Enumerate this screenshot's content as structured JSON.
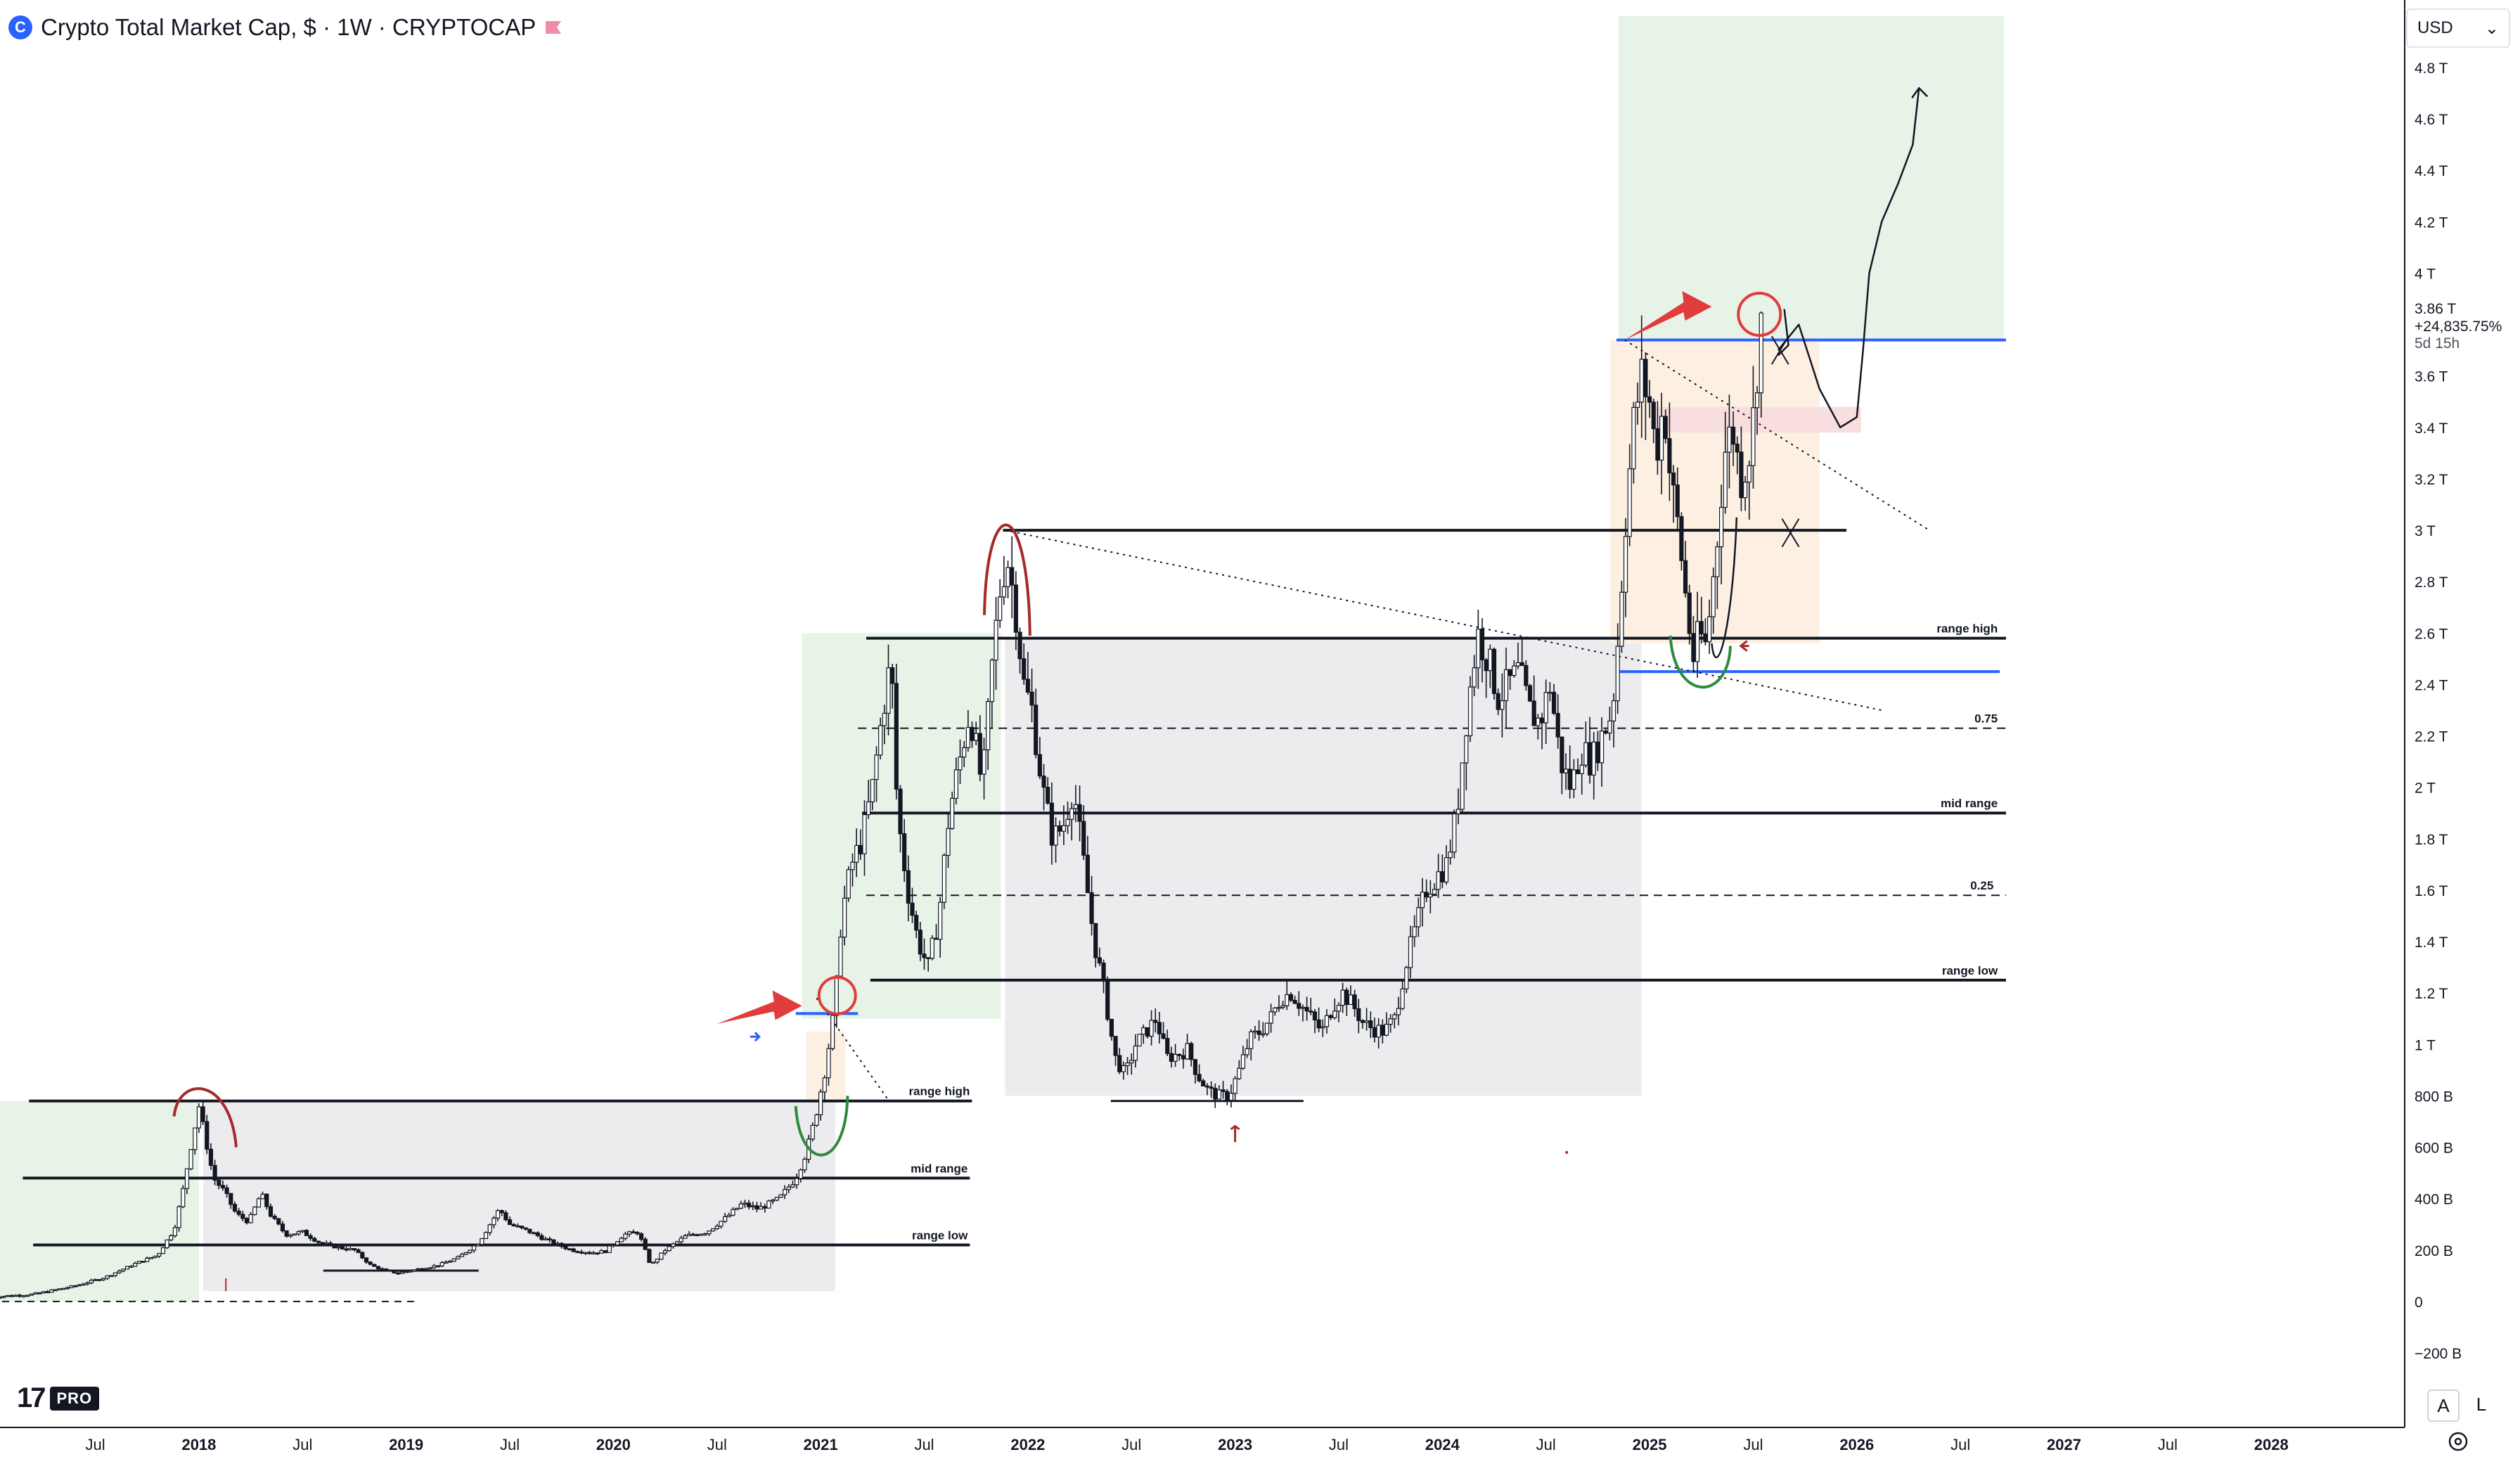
{
  "header": {
    "title": "Crypto Total Market Cap, $ · 1W · CRYPTOCAP",
    "logo_icon": "crypto-market-cap-icon",
    "flag_icon": "flag-icon"
  },
  "currency_selector": {
    "value": "USD"
  },
  "price_scale": {
    "ticks": [
      "4.8 T",
      "4.6 T",
      "4.4 T",
      "4.2 T",
      "4 T",
      "3.6 T",
      "3.4 T",
      "3.2 T",
      "3 T",
      "2.8 T",
      "2.6 T",
      "2.4 T",
      "2.2 T",
      "2 T",
      "1.8 T",
      "1.6 T",
      "1.4 T",
      "1.2 T",
      "1 T",
      "800 B",
      "600 B",
      "400 B",
      "200 B",
      "0",
      "−200 B"
    ],
    "current_price": "3.86 T",
    "change": "+24,835.75%",
    "countdown": "5d 15h"
  },
  "bottom_controls": {
    "auto_label": "A",
    "log_label": "L",
    "settings_icon": "gear-icon"
  },
  "branding": {
    "logo_text": "17",
    "pro_label": "PRO"
  },
  "colors": {
    "accent": "#2962ff",
    "arrow_red": "#e03c3c",
    "arc_red": "#a52a2a",
    "arc_green": "#2e8b3e",
    "zone_green": "#e8f3e8",
    "zone_gray": "#ececef",
    "zone_orange": "#fdf0e3",
    "zone_pink": "#f8dede"
  },
  "chart_data": {
    "type": "candlestick",
    "title": "Crypto Total Market Cap, $ · 1W · CRYPTOCAP",
    "ylabel": "",
    "xlabel": "",
    "y_ticks": [
      "4.8 T",
      "4.6 T",
      "4.4 T",
      "4.2 T",
      "4 T",
      "3.6 T",
      "3.4 T",
      "3.2 T",
      "3 T",
      "2.8 T",
      "2.6 T",
      "2.4 T",
      "2.2 T",
      "2 T",
      "1.8 T",
      "1.6 T",
      "1.4 T",
      "1.2 T",
      "1 T",
      "800 B",
      "600 B",
      "400 B",
      "200 B",
      "0",
      "−200 B"
    ],
    "y_tick_values": [
      4800,
      4600,
      4400,
      4200,
      4000,
      3600,
      3400,
      3200,
      3000,
      2800,
      2600,
      2400,
      2200,
      2000,
      1800,
      1600,
      1400,
      1200,
      1000,
      800,
      600,
      400,
      200,
      0,
      -200
    ],
    "ylim": [
      -300,
      5000
    ],
    "y_unit": "B",
    "x_ticks": [
      "Jul",
      "2018",
      "Jul",
      "2019",
      "Jul",
      "2020",
      "Jul",
      "2021",
      "Jul",
      "2022",
      "Jul",
      "2023",
      "Jul",
      "2024",
      "Jul",
      "2025",
      "Jul",
      "2026",
      "Jul",
      "2027",
      "Jul",
      "2028"
    ],
    "x_tick_values": [
      2017.5,
      2018,
      2018.5,
      2019,
      2019.5,
      2020,
      2020.5,
      2021,
      2021.5,
      2022,
      2022.5,
      2023,
      2023.5,
      2024,
      2024.5,
      2025,
      2025.5,
      2026,
      2026.5,
      2027,
      2027.5,
      2028
    ],
    "xlim": [
      2017.04,
      2028.62
    ],
    "grid": false,
    "price_path": [
      [
        2017.0,
        18
      ],
      [
        2017.2,
        28
      ],
      [
        2017.4,
        60
      ],
      [
        2017.55,
        95
      ],
      [
        2017.7,
        150
      ],
      [
        2017.8,
        180
      ],
      [
        2017.88,
        280
      ],
      [
        2017.92,
        420
      ],
      [
        2017.96,
        600
      ],
      [
        2018.0,
        760
      ],
      [
        2018.03,
        640
      ],
      [
        2018.07,
        480
      ],
      [
        2018.12,
        430
      ],
      [
        2018.18,
        340
      ],
      [
        2018.24,
        310
      ],
      [
        2018.3,
        420
      ],
      [
        2018.35,
        330
      ],
      [
        2018.42,
        260
      ],
      [
        2018.5,
        270
      ],
      [
        2018.58,
        230
      ],
      [
        2018.67,
        210
      ],
      [
        2018.75,
        200
      ],
      [
        2018.83,
        140
      ],
      [
        2018.9,
        120
      ],
      [
        2018.96,
        110
      ],
      [
        2019.05,
        125
      ],
      [
        2019.15,
        140
      ],
      [
        2019.25,
        170
      ],
      [
        2019.35,
        230
      ],
      [
        2019.45,
        360
      ],
      [
        2019.5,
        300
      ],
      [
        2019.6,
        270
      ],
      [
        2019.7,
        230
      ],
      [
        2019.8,
        200
      ],
      [
        2019.9,
        190
      ],
      [
        2019.96,
        195
      ],
      [
        2020.05,
        260
      ],
      [
        2020.12,
        270
      ],
      [
        2020.18,
        140
      ],
      [
        2020.25,
        200
      ],
      [
        2020.35,
        255
      ],
      [
        2020.45,
        270
      ],
      [
        2020.55,
        330
      ],
      [
        2020.62,
        380
      ],
      [
        2020.7,
        360
      ],
      [
        2020.8,
        400
      ],
      [
        2020.88,
        480
      ],
      [
        2020.93,
        580
      ],
      [
        2020.97,
        700
      ],
      [
        2021.02,
        900
      ],
      [
        2021.07,
        1150
      ],
      [
        2021.1,
        1500
      ],
      [
        2021.15,
        1700
      ],
      [
        2021.2,
        1800
      ],
      [
        2021.25,
        2000
      ],
      [
        2021.3,
        2300
      ],
      [
        2021.34,
        2500
      ],
      [
        2021.37,
        1900
      ],
      [
        2021.42,
        1600
      ],
      [
        2021.47,
        1400
      ],
      [
        2021.52,
        1300
      ],
      [
        2021.57,
        1500
      ],
      [
        2021.62,
        1900
      ],
      [
        2021.67,
        2100
      ],
      [
        2021.72,
        2300
      ],
      [
        2021.78,
        2000
      ],
      [
        2021.83,
        2500
      ],
      [
        2021.87,
        2800
      ],
      [
        2021.9,
        2900
      ],
      [
        2021.94,
        2700
      ],
      [
        2021.98,
        2400
      ],
      [
        2022.02,
        2300
      ],
      [
        2022.07,
        2000
      ],
      [
        2022.12,
        1800
      ],
      [
        2022.17,
        1850
      ],
      [
        2022.22,
        2000
      ],
      [
        2022.27,
        1700
      ],
      [
        2022.32,
        1400
      ],
      [
        2022.37,
        1200
      ],
      [
        2022.42,
        950
      ],
      [
        2022.47,
        880
      ],
      [
        2022.52,
        1000
      ],
      [
        2022.57,
        1050
      ],
      [
        2022.62,
        1100
      ],
      [
        2022.67,
        950
      ],
      [
        2022.72,
        960
      ],
      [
        2022.77,
        980
      ],
      [
        2022.82,
        880
      ],
      [
        2022.87,
        820
      ],
      [
        2022.92,
        800
      ],
      [
        2022.97,
        800
      ],
      [
        2023.02,
        900
      ],
      [
        2023.07,
        1020
      ],
      [
        2023.12,
        1050
      ],
      [
        2023.17,
        1100
      ],
      [
        2023.22,
        1180
      ],
      [
        2023.27,
        1200
      ],
      [
        2023.32,
        1150
      ],
      [
        2023.37,
        1100
      ],
      [
        2023.42,
        1050
      ],
      [
        2023.47,
        1150
      ],
      [
        2023.52,
        1200
      ],
      [
        2023.57,
        1150
      ],
      [
        2023.62,
        1080
      ],
      [
        2023.67,
        1060
      ],
      [
        2023.72,
        1050
      ],
      [
        2023.77,
        1100
      ],
      [
        2023.82,
        1300
      ],
      [
        2023.87,
        1450
      ],
      [
        2023.92,
        1600
      ],
      [
        2023.97,
        1650
      ],
      [
        2024.02,
        1700
      ],
      [
        2024.07,
        1900
      ],
      [
        2024.12,
        2300
      ],
      [
        2024.17,
        2600
      ],
      [
        2024.22,
        2500
      ],
      [
        2024.27,
        2350
      ],
      [
        2024.32,
        2400
      ],
      [
        2024.37,
        2450
      ],
      [
        2024.42,
        2300
      ],
      [
        2024.47,
        2250
      ],
      [
        2024.52,
        2400
      ],
      [
        2024.57,
        2100
      ],
      [
        2024.62,
        2000
      ],
      [
        2024.67,
        2150
      ],
      [
        2024.72,
        2100
      ],
      [
        2024.77,
        2200
      ],
      [
        2024.82,
        2300
      ],
      [
        2024.85,
        2600
      ],
      [
        2024.88,
        3000
      ],
      [
        2024.92,
        3400
      ],
      [
        2024.96,
        3600
      ],
      [
        2025.0,
        3500
      ],
      [
        2025.03,
        3300
      ],
      [
        2025.07,
        3500
      ],
      [
        2025.1,
        3200
      ],
      [
        2025.14,
        3000
      ],
      [
        2025.18,
        2700
      ],
      [
        2025.21,
        2500
      ],
      [
        2025.24,
        2600
      ],
      [
        2025.27,
        2550
      ],
      [
        2025.3,
        2750
      ],
      [
        2025.33,
        3000
      ],
      [
        2025.36,
        3300
      ],
      [
        2025.4,
        3400
      ],
      [
        2025.44,
        3200
      ],
      [
        2025.48,
        3300
      ],
      [
        2025.51,
        3500
      ],
      [
        2025.53,
        3800
      ],
      [
        2025.55,
        3860
      ]
    ],
    "ranges": [
      {
        "name": "cycle-2018",
        "high": 780,
        "mid": 480,
        "low": 220,
        "labels": [
          "range high",
          "mid range",
          "range low"
        ]
      },
      {
        "name": "cycle-2022",
        "high": 2580,
        "mid": 1900,
        "low": 1250,
        "levels": [
          {
            "label": "0.75",
            "value": 2230
          },
          {
            "label": "0.25",
            "value": 1580
          }
        ],
        "labels": [
          "range high",
          "mid range",
          "range low"
        ]
      }
    ],
    "key_levels": [
      {
        "label": "",
        "value": 3000,
        "color": "#131722"
      },
      {
        "label": "",
        "value": 3740,
        "color": "#2962ff"
      },
      {
        "label": "",
        "value": 2450,
        "color": "#2962ff"
      },
      {
        "label": "",
        "value": 1120,
        "color": "#2962ff"
      }
    ],
    "range_labels": [
      "range high",
      "mid range",
      "range low",
      "range high",
      "0.75",
      "mid range",
      "0.25",
      "range low"
    ],
    "projection_path": [
      [
        2025.62,
        3700
      ],
      [
        2025.72,
        3800
      ],
      [
        2025.82,
        3550
      ],
      [
        2025.92,
        3400
      ],
      [
        2026.0,
        3440
      ],
      [
        2026.03,
        3700
      ],
      [
        2026.06,
        4000
      ],
      [
        2026.12,
        4200
      ],
      [
        2026.2,
        4350
      ],
      [
        2026.27,
        4500
      ],
      [
        2026.3,
        4720
      ]
    ]
  }
}
